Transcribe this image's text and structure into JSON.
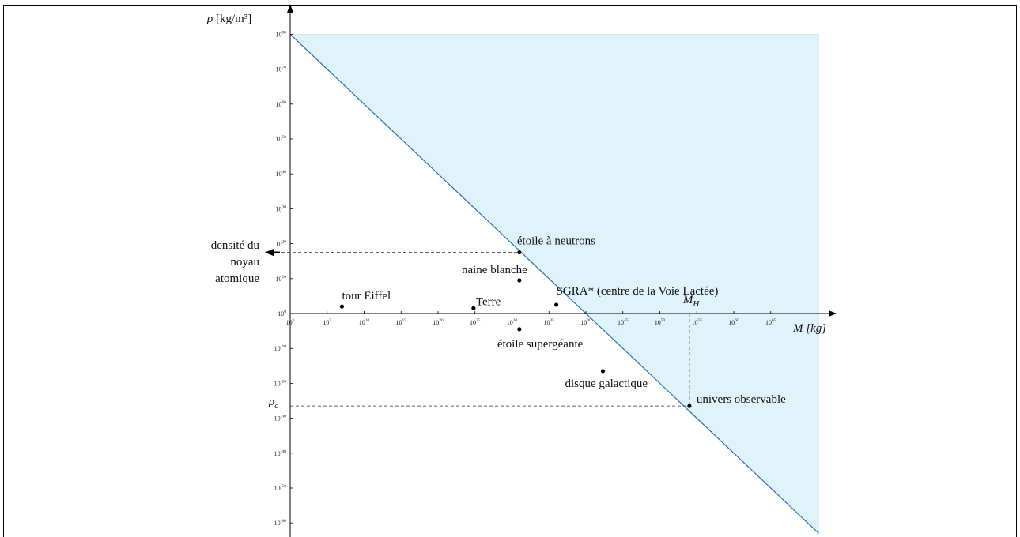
{
  "chart_data": {
    "type": "scatter",
    "title": "",
    "xlabel": "M [kg]",
    "ylabel": "ρ [kg/m³]",
    "x_scale": "log10",
    "y_scale": "log10",
    "xlim": [
      1,
      1e+70
    ],
    "ylim": [
      1e-60,
      1e+80
    ],
    "x_ticks": [
      {
        "base": "10",
        "exp": "0"
      },
      {
        "base": "10",
        "exp": "5"
      },
      {
        "base": "10",
        "exp": "10"
      },
      {
        "base": "10",
        "exp": "15"
      },
      {
        "base": "10",
        "exp": "20"
      },
      {
        "base": "10",
        "exp": "25"
      },
      {
        "base": "10",
        "exp": "30"
      },
      {
        "base": "10",
        "exp": "35"
      },
      {
        "base": "10",
        "exp": "40"
      },
      {
        "base": "10",
        "exp": "45"
      },
      {
        "base": "10",
        "exp": "50"
      },
      {
        "base": "10",
        "exp": "55"
      },
      {
        "base": "10",
        "exp": "60"
      },
      {
        "base": "10",
        "exp": "65"
      }
    ],
    "y_ticks": [
      {
        "base": "10",
        "exp": "80"
      },
      {
        "base": "10",
        "exp": "70"
      },
      {
        "base": "10",
        "exp": "60"
      },
      {
        "base": "10",
        "exp": "50"
      },
      {
        "base": "10",
        "exp": "40"
      },
      {
        "base": "10",
        "exp": "30"
      },
      {
        "base": "10",
        "exp": "20"
      },
      {
        "base": "10",
        "exp": "10"
      },
      {
        "base": "10",
        "exp": "0"
      },
      {
        "base": "10",
        "exp": "-10"
      },
      {
        "base": "10",
        "exp": "-20"
      },
      {
        "base": "10",
        "exp": "-30"
      },
      {
        "base": "10",
        "exp": "-40"
      },
      {
        "base": "10",
        "exp": "-50"
      },
      {
        "base": "10",
        "exp": "-60"
      }
    ],
    "points": [
      {
        "label": "tour Eiffel",
        "x": 7.0,
        "y": 2.0
      },
      {
        "label": "Terre",
        "x": 24.8,
        "y": 1.5
      },
      {
        "label": "naine blanche",
        "x": 31.0,
        "y": 9.5
      },
      {
        "label": "étoile à neutrons",
        "x": 31.0,
        "y": 17.5
      },
      {
        "label": "SGRA* (centre de la Voie Lactée)",
        "x": 36.0,
        "y": 2.5
      },
      {
        "label": "étoile supergéante",
        "x": 31.0,
        "y": -4.5
      },
      {
        "label": "disque galactique",
        "x": 42.3,
        "y": -16.5
      },
      {
        "label": "univers observable",
        "x": 54.0,
        "y": -26.5
      }
    ],
    "boundary_line": {
      "from": {
        "x": 0,
        "y": 80
      },
      "to": {
        "x": 71.5,
        "y": -63
      }
    },
    "shaded_region": {
      "color": "#e0f2fa",
      "corners": [
        {
          "x": 0,
          "y": 80
        },
        {
          "x": 71.5,
          "y": 80
        },
        {
          "x": 71.5,
          "y": -63
        }
      ]
    },
    "annotations": {
      "nuclear_density": {
        "label_lines": [
          "densité du",
          "noyau",
          "atomique"
        ],
        "y": 17.5
      },
      "M_H": {
        "label": "M",
        "sub": "H",
        "x": 54.0
      },
      "rho_c": {
        "label": "ρ",
        "sub": "c",
        "y": -26.5
      }
    },
    "colors": {
      "line": "#2a6fb0",
      "fill": "#e0f2fa",
      "axis": "#000000",
      "point": "#000000"
    }
  }
}
